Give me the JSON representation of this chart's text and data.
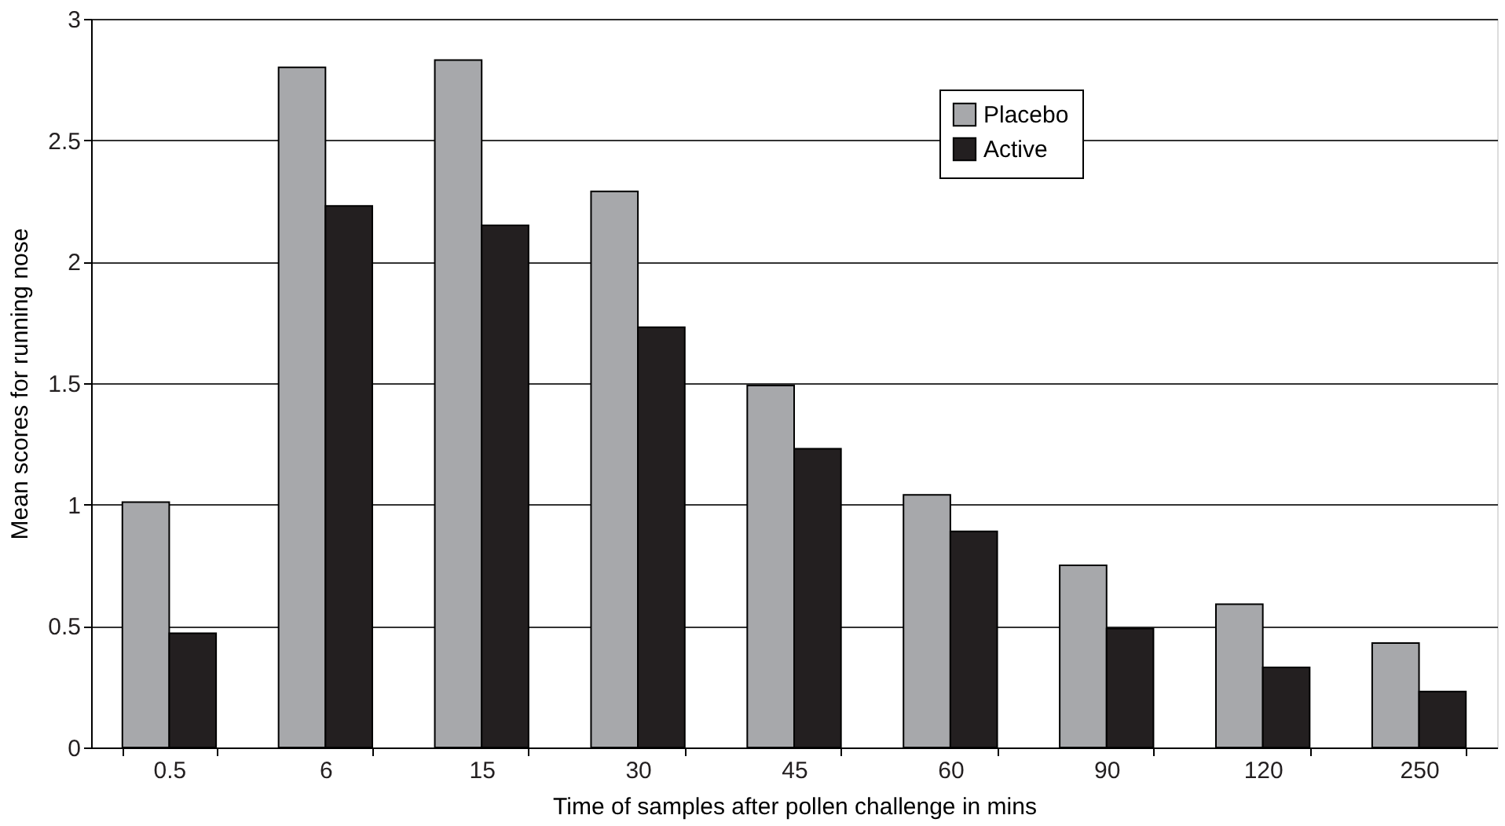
{
  "chart_data": {
    "type": "bar",
    "xlabel": "Time of samples after pollen challenge in mins",
    "ylabel": "Mean scores  for running nose",
    "categories": [
      "0.5",
      "6",
      "15",
      "30",
      "45",
      "60",
      "90",
      "120",
      "250"
    ],
    "series": [
      {
        "name": "Placebo",
        "color": "#a7a8ab",
        "values": [
          1.01,
          2.8,
          2.83,
          2.29,
          1.49,
          1.04,
          0.75,
          0.59,
          0.43
        ]
      },
      {
        "name": "Active",
        "color": "#231f20",
        "values": [
          0.47,
          2.23,
          2.15,
          1.73,
          1.23,
          0.89,
          0.49,
          0.33,
          0.23
        ]
      }
    ],
    "ylim": [
      0,
      3
    ],
    "yticks": [
      0,
      0.5,
      1,
      1.5,
      2,
      2.5,
      3
    ],
    "grid": "y",
    "legend": "top right"
  }
}
